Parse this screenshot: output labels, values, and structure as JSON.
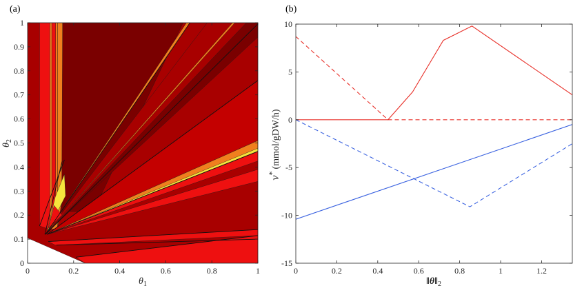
{
  "chart_data": [
    {
      "panel": "(a)",
      "type": "heatmap",
      "xlabel": "θ",
      "xlabel_sub": "1",
      "ylabel": "θ",
      "ylabel_sub": "2",
      "xlim": [
        0,
        1
      ],
      "ylim": [
        0,
        1
      ],
      "xticks": [
        0,
        0.2,
        0.4,
        0.6,
        0.8,
        1
      ],
      "xtick_labels": [
        "0",
        "0.2",
        "0.4",
        "0.6",
        "0.8",
        "1"
      ],
      "yticks": [
        0,
        0.1,
        0.2,
        0.3,
        0.4,
        0.5,
        0.6,
        0.7,
        0.8,
        0.9,
        1
      ],
      "ytick_labels": [
        "0",
        "0.1",
        "0.2",
        "0.3",
        "0.4",
        "0.5",
        "0.6",
        "0.7",
        "0.8",
        "0.9",
        "1"
      ],
      "colors": {
        "darkest": "#7a0000",
        "dark": "#a80000",
        "mid": "#c40000",
        "red": "#ee1010",
        "orange": "#f07f1e",
        "yellow": "#f6e43c",
        "empty": "#ffffff"
      },
      "regions": [
        {
          "color": "dark",
          "points": [
            [
              0,
              0.105
            ],
            [
              0.25,
              0
            ],
            [
              1,
              0
            ],
            [
              1,
              1
            ],
            [
              0,
              1
            ]
          ]
        },
        {
          "color": "red",
          "points": [
            [
              0.052,
              0.155
            ],
            [
              0.052,
              1
            ],
            [
              0.097,
              1
            ],
            [
              0.097,
              0.14
            ]
          ]
        },
        {
          "color": "orange",
          "points": [
            [
              0.097,
              0.14
            ],
            [
              0.097,
              1
            ],
            [
              0.13,
              1
            ],
            [
              0.13,
              0.145
            ]
          ]
        },
        {
          "color": "red",
          "points": [
            [
              0.105,
              1
            ],
            [
              0.122,
              1
            ],
            [
              0.122,
              0.2
            ],
            [
              0.105,
              0.2
            ]
          ]
        },
        {
          "color": "orange",
          "points": [
            [
              0.13,
              0.145
            ],
            [
              0.13,
              1
            ],
            [
              0.152,
              1
            ],
            [
              0.152,
              0.28
            ]
          ]
        },
        {
          "color": "darkest",
          "points": [
            [
              0.148,
              0.215
            ],
            [
              0.152,
              1
            ],
            [
              0.675,
              1
            ],
            [
              0.285,
              0.215
            ]
          ]
        },
        {
          "color": "darkest",
          "points": [
            [
              0.075,
              0.12
            ],
            [
              0.95,
              1
            ],
            [
              1,
              1
            ],
            [
              1,
              0.94
            ]
          ]
        },
        {
          "color": "dark",
          "points": [
            [
              0.078,
              0.12
            ],
            [
              0.78,
              1
            ],
            [
              0.95,
              1
            ]
          ]
        },
        {
          "color": "orange",
          "points": [
            [
              0.078,
              0.12
            ],
            [
              0.69,
              1
            ],
            [
              0.705,
              1
            ]
          ]
        },
        {
          "color": "orange",
          "points": [
            [
              0.078,
              0.12
            ],
            [
              0.89,
              1
            ],
            [
              0.9,
              1
            ]
          ]
        },
        {
          "color": "mid",
          "points": [
            [
              0.085,
              0.12
            ],
            [
              1,
              0.76
            ],
            [
              1,
              0.51
            ]
          ]
        },
        {
          "color": "orange",
          "points": [
            [
              0.085,
              0.12
            ],
            [
              1,
              0.51
            ],
            [
              1,
              0.47
            ]
          ]
        },
        {
          "color": "yellow",
          "points": [
            [
              0.085,
              0.12
            ],
            [
              1,
              0.478
            ],
            [
              1,
              0.465
            ]
          ]
        },
        {
          "color": "red",
          "points": [
            [
              0.085,
              0.12
            ],
            [
              1,
              0.465
            ],
            [
              1,
              0.425
            ]
          ]
        },
        {
          "color": "red",
          "points": [
            [
              0.085,
              0.12
            ],
            [
              1,
              0.39
            ],
            [
              1,
              0.34
            ]
          ]
        },
        {
          "color": "red",
          "points": [
            [
              0.09,
              0.09
            ],
            [
              1,
              0.14
            ],
            [
              1,
              0.115
            ],
            [
              0.12,
              0.075
            ]
          ]
        },
        {
          "color": "red",
          "points": [
            [
              0.25,
              0
            ],
            [
              0.21,
              0.025
            ],
            [
              1,
              0.115
            ],
            [
              1,
              0
            ]
          ]
        },
        {
          "color": "yellow",
          "points": [
            [
              0.085,
              0.13
            ],
            [
              0.12,
              0.275
            ],
            [
              0.16,
              0.37
            ],
            [
              0.165,
              0.28
            ]
          ]
        },
        {
          "color": "red",
          "points": [
            [
              0.09,
              0.145
            ],
            [
              0.115,
              0.24
            ],
            [
              0.15,
              0.2
            ]
          ]
        }
      ],
      "boundary_lines": [
        [
          [
            0.052,
            0.155
          ],
          [
            0.16,
            0.43
          ]
        ],
        [
          [
            0.075,
            0.12
          ],
          [
            0.15,
            0.425
          ]
        ],
        [
          [
            0.078,
            0.12
          ],
          [
            1,
            0.995
          ]
        ],
        [
          [
            0.078,
            0.12
          ],
          [
            0.705,
            1
          ]
        ],
        [
          [
            0.085,
            0.12
          ],
          [
            1,
            0.465
          ]
        ],
        [
          [
            0.085,
            0.12
          ],
          [
            1,
            0.76
          ]
        ],
        [
          [
            0.09,
            0.09
          ],
          [
            1,
            0.14
          ]
        ],
        [
          [
            0.125,
            0.075
          ],
          [
            1,
            0.1
          ]
        ],
        [
          [
            0.21,
            0.025
          ],
          [
            1,
            0.115
          ]
        ]
      ]
    },
    {
      "panel": "(b)",
      "type": "line",
      "xlabel": "‖θ‖",
      "xlabel_sub": "2",
      "ylabel": "v",
      "ylabel_sup": "*",
      "ylabel_units": "(mmol/gDW/h)",
      "xlim": [
        0,
        1.35
      ],
      "ylim": [
        -15,
        10
      ],
      "xticks": [
        0,
        0.2,
        0.4,
        0.6,
        0.8,
        1,
        1.2
      ],
      "xtick_labels": [
        "0",
        "0.2",
        "0.4",
        "0.6",
        "0.8",
        "1",
        "1.2"
      ],
      "yticks": [
        -15,
        -10,
        -5,
        0,
        5,
        10
      ],
      "ytick_labels": [
        "-15",
        "-10",
        "-5",
        "0",
        "5",
        "10"
      ],
      "series": [
        {
          "name": "red-solid",
          "color": "#e8312a",
          "dash": false,
          "x": [
            0,
            0.45,
            0.57,
            0.72,
            0.86,
            1.35
          ],
          "y": [
            0,
            0,
            2.9,
            8.3,
            9.8,
            2.6
          ]
        },
        {
          "name": "red-dashed",
          "color": "#e8312a",
          "dash": true,
          "x": [
            0,
            0.45,
            1.35
          ],
          "y": [
            8.7,
            0,
            0
          ]
        },
        {
          "name": "blue-solid",
          "color": "#3a62e0",
          "dash": false,
          "x": [
            0,
            1.35
          ],
          "y": [
            -10.4,
            -0.5
          ]
        },
        {
          "name": "blue-dashed",
          "color": "#3a62e0",
          "dash": true,
          "x": [
            0,
            0.85,
            1.35
          ],
          "y": [
            0,
            -9.1,
            -2.5
          ]
        }
      ]
    }
  ]
}
